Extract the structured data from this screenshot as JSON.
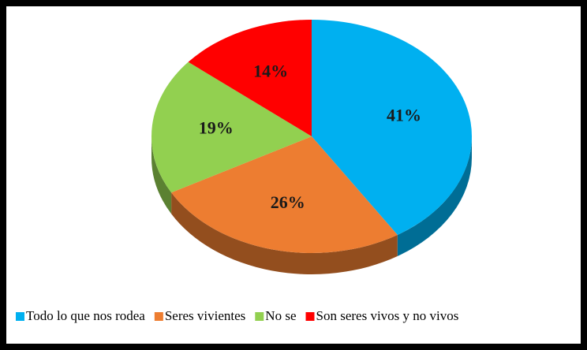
{
  "chart_data": {
    "type": "pie",
    "categories": [
      "Todo lo que nos rodea",
      "Seres vivientes",
      "No se",
      "Son seres vivos y no vivos"
    ],
    "values": [
      41,
      26,
      19,
      14
    ],
    "value_labels": [
      "41%",
      "26%",
      "19%",
      "14%"
    ],
    "colors": [
      "#00b0f0",
      "#ed7d31",
      "#92d050",
      "#ff0000"
    ],
    "legend": "bottom"
  }
}
